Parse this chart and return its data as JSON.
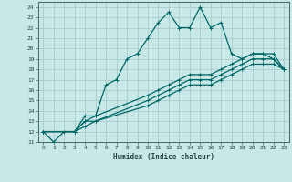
{
  "xlabel": "Humidex (Indice chaleur)",
  "bg_color": "#c8e8e8",
  "grid_color": "#a8cccc",
  "line_color": "#006666",
  "xlim": [
    -0.5,
    23.5
  ],
  "ylim": [
    11,
    24.5
  ],
  "xticks": [
    0,
    1,
    2,
    3,
    4,
    5,
    6,
    7,
    8,
    9,
    10,
    11,
    12,
    13,
    14,
    15,
    16,
    17,
    18,
    19,
    20,
    21,
    22,
    23
  ],
  "yticks": [
    11,
    12,
    13,
    14,
    15,
    16,
    17,
    18,
    19,
    20,
    21,
    22,
    23,
    24
  ],
  "series1_x": [
    0,
    1,
    2,
    3,
    4,
    5,
    6,
    7,
    8,
    9,
    10,
    11,
    12,
    13,
    14,
    15,
    16,
    17,
    18,
    19,
    20,
    21,
    22,
    23
  ],
  "series1_y": [
    12,
    11,
    12,
    12,
    13,
    13.5,
    16.5,
    17,
    19,
    19.5,
    21,
    22.5,
    23.5,
    22,
    22,
    24,
    22,
    22.5,
    19.5,
    19,
    19.5,
    19.5,
    19,
    18
  ],
  "series2_x": [
    0,
    3,
    4,
    5,
    10,
    11,
    12,
    13,
    14,
    15,
    16,
    17,
    18,
    19,
    20,
    21,
    22,
    23
  ],
  "series2_y": [
    12,
    12,
    13.5,
    13.5,
    15.5,
    16,
    16.5,
    17,
    17.5,
    17.5,
    17.5,
    18,
    18.5,
    19,
    19.5,
    19.5,
    19.5,
    18
  ],
  "series3_x": [
    0,
    3,
    4,
    5,
    10,
    11,
    12,
    13,
    14,
    15,
    16,
    17,
    18,
    19,
    20,
    21,
    22,
    23
  ],
  "series3_y": [
    12,
    12,
    13,
    13,
    15,
    15.5,
    16,
    16.5,
    17,
    17,
    17,
    17.5,
    18,
    18.5,
    19,
    19,
    19,
    18
  ],
  "series4_x": [
    0,
    3,
    4,
    5,
    10,
    11,
    12,
    13,
    14,
    15,
    16,
    17,
    18,
    19,
    20,
    21,
    22,
    23
  ],
  "series4_y": [
    12,
    12,
    12.5,
    13,
    14.5,
    15,
    15.5,
    16,
    16.5,
    16.5,
    16.5,
    17,
    17.5,
    18,
    18.5,
    18.5,
    18.5,
    18
  ]
}
